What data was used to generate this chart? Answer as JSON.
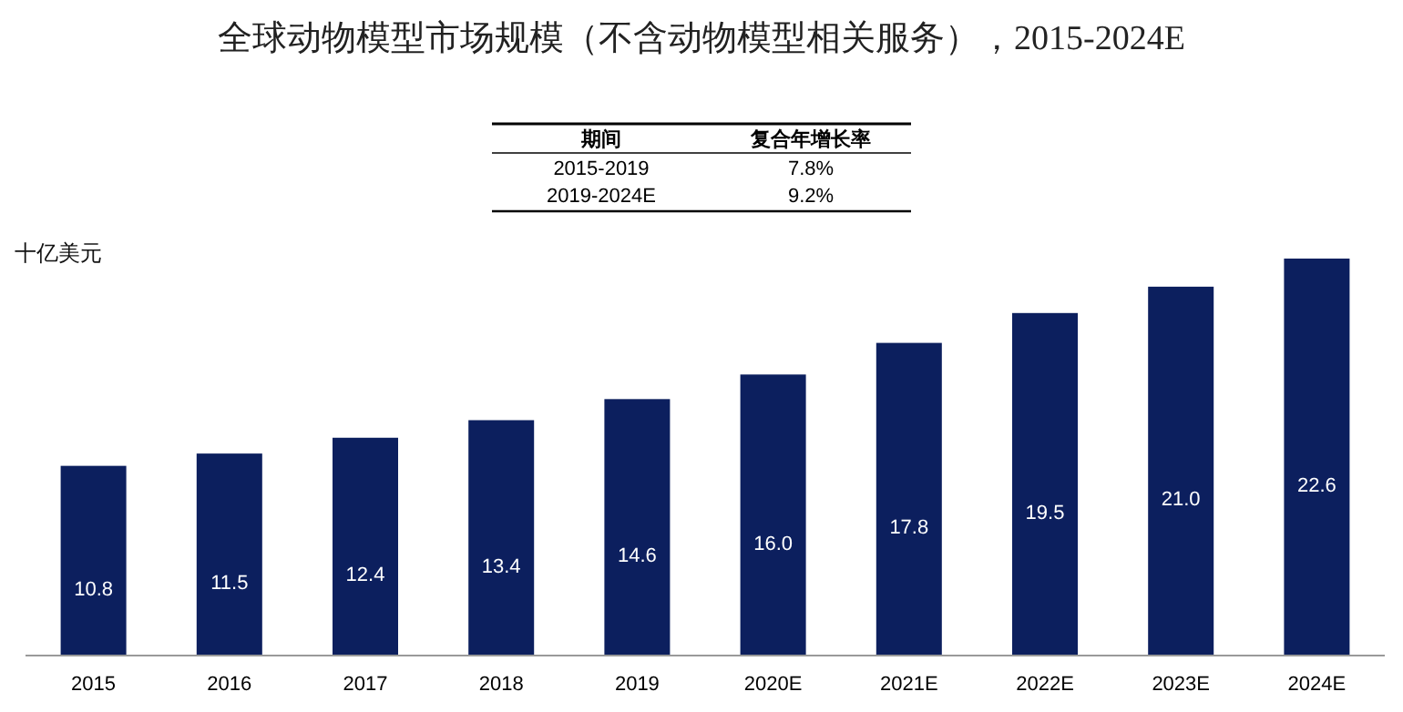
{
  "chart_data": {
    "type": "bar",
    "title": "全球动物模型市场规模（不含动物模型相关服务），2015-2024E",
    "ylabel": "十亿美元",
    "annotations": [
      "期间",
      "复合年增长率",
      "2015-2019",
      "7.8%",
      "2019-2024E",
      "9.2%"
    ],
    "categories": [
      "2015",
      "2016",
      "2017",
      "2018",
      "2019",
      "2020E",
      "2021E",
      "2022E",
      "2023E",
      "2024E"
    ],
    "values": [
      10.8,
      11.5,
      12.4,
      13.4,
      14.6,
      16.0,
      17.8,
      19.5,
      21.0,
      22.6
    ],
    "value_labels": [
      "10.8",
      "11.5",
      "12.4",
      "13.4",
      "14.6",
      "16.0",
      "17.8",
      "19.5",
      "21.0",
      "22.6"
    ],
    "color": "#0c1f5e"
  }
}
